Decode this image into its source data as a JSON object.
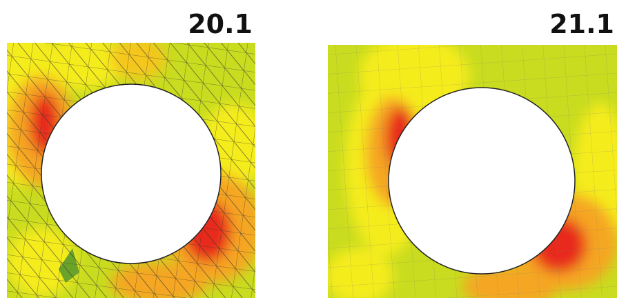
{
  "panels": [
    {
      "label": "20.1"
    },
    {
      "label": "21.1"
    }
  ]
}
